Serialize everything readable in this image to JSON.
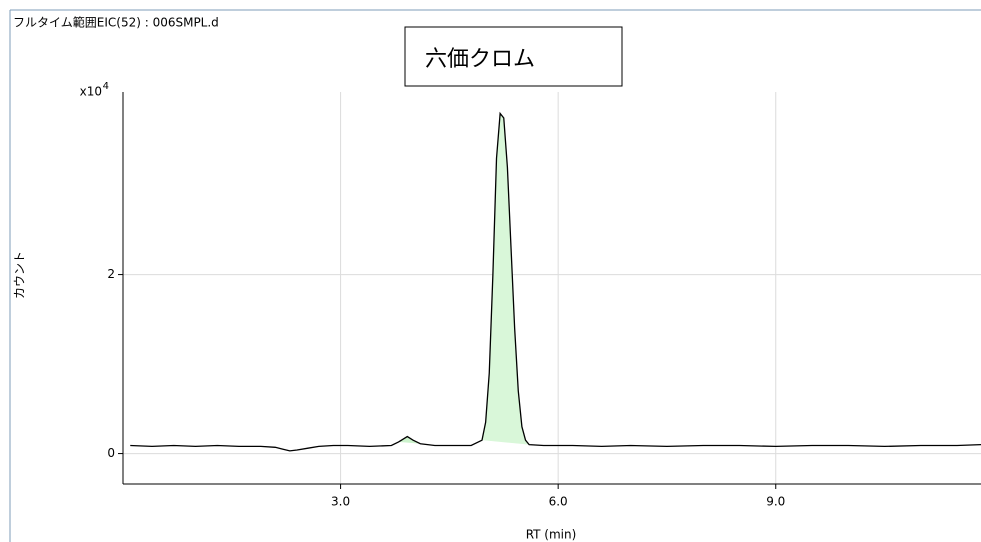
{
  "chart_data": {
    "type": "line",
    "title": "フルタイム範囲EIC(52) : 006SMPL.d",
    "annotation": "六価クロム",
    "y_label": "カウント",
    "x_label": "RT (min)",
    "y_multiplier": {
      "base": "x10",
      "exponent": "4"
    },
    "xlim": [
      0,
      11.83
    ],
    "ylim": [
      -0.34,
      4.04
    ],
    "xticks": [
      {
        "value": 3,
        "label": "3.0"
      },
      {
        "value": 6,
        "label": "6.0"
      },
      {
        "value": 9,
        "label": "9.0"
      }
    ],
    "yticks": [
      0,
      2
    ],
    "grid": true,
    "x": [
      0.1,
      0.4,
      0.7,
      1.0,
      1.3,
      1.6,
      1.9,
      2.1,
      2.2,
      2.3,
      2.4,
      2.55,
      2.7,
      2.9,
      3.1,
      3.4,
      3.7,
      3.8,
      3.92,
      4.0,
      4.1,
      4.3,
      4.6,
      4.8,
      4.95,
      5.0,
      5.05,
      5.1,
      5.15,
      5.2,
      5.25,
      5.3,
      5.35,
      5.4,
      5.45,
      5.5,
      5.55,
      5.6,
      5.8,
      6.2,
      6.6,
      7.0,
      7.5,
      8.0,
      8.5,
      9.0,
      9.5,
      10.0,
      10.5,
      11.0,
      11.5,
      11.83
    ],
    "series": [
      {
        "color": "#000000",
        "values": [
          0.09,
          0.08,
          0.09,
          0.08,
          0.09,
          0.08,
          0.08,
          0.07,
          0.05,
          0.03,
          0.04,
          0.06,
          0.08,
          0.09,
          0.09,
          0.08,
          0.09,
          0.13,
          0.19,
          0.15,
          0.11,
          0.09,
          0.09,
          0.09,
          0.15,
          0.35,
          0.9,
          2.0,
          3.3,
          3.8,
          3.75,
          3.2,
          2.3,
          1.4,
          0.7,
          0.3,
          0.15,
          0.1,
          0.09,
          0.09,
          0.08,
          0.09,
          0.08,
          0.09,
          0.09,
          0.08,
          0.09,
          0.09,
          0.08,
          0.09,
          0.09,
          0.1
        ]
      }
    ],
    "highlights": [
      {
        "xlim": [
          3.8,
          4.1
        ],
        "color": "#ccf2cc"
      },
      {
        "xlim": [
          4.95,
          5.6
        ],
        "color": "#d9f7d9"
      }
    ]
  }
}
